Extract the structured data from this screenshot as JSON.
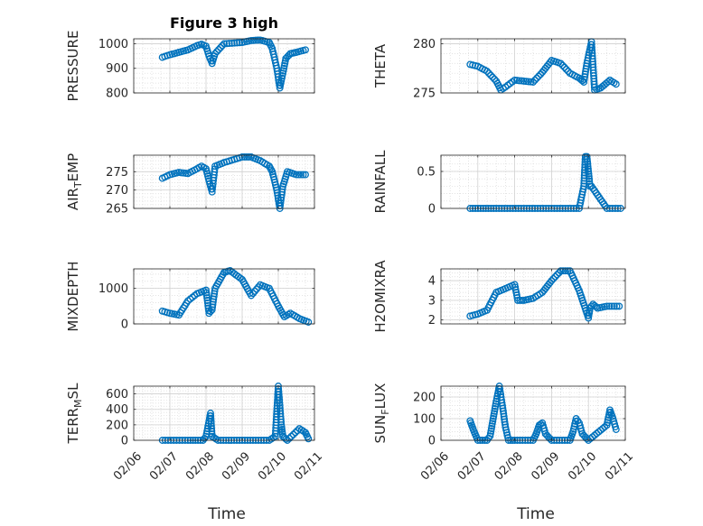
{
  "chart_data": [
    {
      "type": "scatter",
      "title": "Figure 3 high",
      "ylabel": "PRESSURE",
      "ylim": [
        800,
        1020
      ],
      "yticks": [
        800,
        900,
        1000
      ],
      "ytick_labels": [
        "800",
        "900",
        "1000"
      ],
      "xlim": [
        "02/06",
        "02/11"
      ],
      "grid": true,
      "x": [
        "2/6 19:00",
        "2/7 00:00",
        "2/7 06:00",
        "2/7 12:00",
        "2/7 18:00",
        "2/7 21:00",
        "2/8 00:00",
        "2/8 02:00",
        "2/8 04:00",
        "2/8 06:00",
        "2/8 12:00",
        "2/9 00:00",
        "2/9 06:00",
        "2/9 12:00",
        "2/9 18:00",
        "2/9 20:00",
        "2/9 23:00",
        "2/10 01:00",
        "2/10 03:00",
        "2/10 05:00",
        "2/10 08:00",
        "2/10 12:00",
        "2/10 18:00"
      ],
      "y": [
        945,
        955,
        965,
        975,
        992,
        998,
        990,
        950,
        920,
        960,
        1000,
        1005,
        1013,
        1015,
        1005,
        980,
        900,
        820,
        880,
        940,
        960,
        965,
        975
      ]
    },
    {
      "type": "scatter",
      "ylabel": "THETA",
      "ylim": [
        275,
        280.5
      ],
      "yticks": [
        275,
        280
      ],
      "ytick_labels": [
        "275",
        "280"
      ],
      "xlim": [
        "02/06",
        "02/11"
      ],
      "grid": true,
      "x": [
        "2/6 19:00",
        "2/7 00:00",
        "2/7 06:00",
        "2/7 12:00",
        "2/7 15:00",
        "2/7 18:00",
        "2/8 00:00",
        "2/8 06:00",
        "2/8 12:00",
        "2/8 18:00",
        "2/9 00:00",
        "2/9 06:00",
        "2/9 12:00",
        "2/9 18:00",
        "2/9 21:00",
        "2/9 23:00",
        "2/10 02:00",
        "2/10 04:00",
        "2/10 08:00",
        "2/10 14:00",
        "2/10 18:00"
      ],
      "y": [
        277.9,
        277.7,
        277.2,
        276.2,
        275.3,
        275.6,
        276.3,
        276.2,
        276.1,
        277.1,
        278.3,
        278.0,
        277.0,
        276.5,
        276.1,
        278.0,
        280.2,
        275.3,
        275.5,
        276.3,
        275.9
      ]
    },
    {
      "type": "scatter",
      "ylabel": "AIR_TEMP",
      "ylim": [
        265,
        279.5
      ],
      "yticks": [
        265,
        270,
        275
      ],
      "ytick_labels": [
        "265",
        "270",
        "275"
      ],
      "xlim": [
        "02/06",
        "02/11"
      ],
      "grid": true,
      "x": [
        "2/6 19:00",
        "2/7 00:00",
        "2/7 06:00",
        "2/7 12:00",
        "2/7 18:00",
        "2/7 21:00",
        "2/8 00:00",
        "2/8 02:00",
        "2/8 04:00",
        "2/8 06:00",
        "2/8 12:00",
        "2/9 00:00",
        "2/9 06:00",
        "2/9 12:00",
        "2/9 18:00",
        "2/9 20:00",
        "2/9 23:00",
        "2/10 01:00",
        "2/10 03:00",
        "2/10 06:00",
        "2/10 12:00",
        "2/10 18:00"
      ],
      "y": [
        273.2,
        274.2,
        274.8,
        274.5,
        275.8,
        276.5,
        275.8,
        272.5,
        269.5,
        276.5,
        277.5,
        279.0,
        279.0,
        278.0,
        276.5,
        275.0,
        270.0,
        265.0,
        271.0,
        275.0,
        274.2,
        274.2
      ]
    },
    {
      "type": "scatter",
      "ylabel": "RAINFALL",
      "ylim": [
        0,
        0.72
      ],
      "yticks": [
        0,
        0.5
      ],
      "ytick_labels": [
        "0",
        "0.5"
      ],
      "xlim": [
        "02/06",
        "02/11"
      ],
      "grid": true,
      "x": [
        "2/6 19:00",
        "2/7 12:00",
        "2/8 06:00",
        "2/9 00:00",
        "2/9 18:00",
        "2/9 21:00",
        "2/9 22:00",
        "2/9 23:00",
        "2/10 00:00",
        "2/10 01:00",
        "2/10 02:00",
        "2/10 12:00",
        "2/10 21:00"
      ],
      "y": [
        0,
        0,
        0,
        0,
        0,
        0.3,
        0.7,
        0.7,
        0.5,
        0.3,
        0.3,
        0,
        0
      ]
    },
    {
      "type": "scatter",
      "ylabel": "MIXDEPTH",
      "ylim": [
        0,
        1550
      ],
      "yticks": [
        0,
        1000
      ],
      "ytick_labels": [
        "0",
        "1000"
      ],
      "xlim": [
        "02/06",
        "02/11"
      ],
      "grid": true,
      "x": [
        "2/6 19:00",
        "2/7 00:00",
        "2/7 06:00",
        "2/7 12:00",
        "2/7 18:00",
        "2/8 00:00",
        "2/8 02:00",
        "2/8 04:00",
        "2/8 06:00",
        "2/8 12:00",
        "2/8 16:00",
        "2/9 00:00",
        "2/9 06:00",
        "2/9 12:00",
        "2/9 18:00",
        "2/10 00:00",
        "2/10 04:00",
        "2/10 08:00",
        "2/10 14:00",
        "2/10 20:00"
      ],
      "y": [
        360,
        300,
        250,
        650,
        850,
        950,
        300,
        400,
        1000,
        1450,
        1500,
        1250,
        800,
        1100,
        1000,
        500,
        200,
        300,
        150,
        50
      ]
    },
    {
      "type": "scatter",
      "ylabel": "H2OMIXRA",
      "ylim": [
        1.8,
        4.6
      ],
      "yticks": [
        2,
        3,
        4
      ],
      "ytick_labels": [
        "2",
        "3",
        "4"
      ],
      "xlim": [
        "02/06",
        "02/11"
      ],
      "grid": true,
      "x": [
        "2/6 19:00",
        "2/7 00:00",
        "2/7 06:00",
        "2/7 12:00",
        "2/7 18:00",
        "2/8 00:00",
        "2/8 02:00",
        "2/8 06:00",
        "2/8 12:00",
        "2/8 18:00",
        "2/9 00:00",
        "2/9 06:00",
        "2/9 12:00",
        "2/9 18:00",
        "2/10 00:00",
        "2/10 01:00",
        "2/10 03:00",
        "2/10 06:00",
        "2/10 12:00",
        "2/10 20:00"
      ],
      "y": [
        2.2,
        2.3,
        2.5,
        3.4,
        3.6,
        3.8,
        3.0,
        3.0,
        3.1,
        3.4,
        4.0,
        4.5,
        4.5,
        3.5,
        2.1,
        2.6,
        2.8,
        2.6,
        2.7,
        2.7
      ]
    },
    {
      "type": "scatter",
      "ylabel": "TERR_MSL",
      "ylim": [
        0,
        700
      ],
      "yticks": [
        0,
        200,
        400,
        600
      ],
      "ytick_labels": [
        "0",
        "200",
        "400",
        "600"
      ],
      "xlim": [
        "02/06",
        "02/11"
      ],
      "grid": true,
      "x": [
        "2/6 19:00",
        "2/7 12:00",
        "2/7 22:00",
        "2/8 00:00",
        "2/8 01:00",
        "2/8 02:00",
        "2/8 03:00",
        "2/8 04:00",
        "2/8 08:00",
        "2/9 00:00",
        "2/9 18:00",
        "2/9 22:00",
        "2/10 00:00",
        "2/10 01:00",
        "2/10 02:00",
        "2/10 03:00",
        "2/10 06:00",
        "2/10 14:00",
        "2/10 18:00",
        "2/10 20:00"
      ],
      "y": [
        0,
        0,
        0,
        50,
        150,
        250,
        350,
        50,
        0,
        0,
        0,
        50,
        700,
        450,
        200,
        50,
        0,
        150,
        100,
        20
      ]
    },
    {
      "type": "scatter",
      "ylabel": "SUN_FLUX",
      "ylim": [
        0,
        250
      ],
      "yticks": [
        0,
        100,
        200
      ],
      "ytick_labels": [
        "0",
        "100",
        "200"
      ],
      "xlim": [
        "02/06",
        "02/11"
      ],
      "grid": true,
      "x": [
        "2/6 19:00",
        "2/6 21:00",
        "2/7 00:00",
        "2/7 06:00",
        "2/7 08:00",
        "2/7 10:00",
        "2/7 12:00",
        "2/7 14:00",
        "2/7 16:00",
        "2/7 18:00",
        "2/7 20:00",
        "2/8 00:00",
        "2/8 12:00",
        "2/8 14:00",
        "2/8 16:00",
        "2/8 18:00",
        "2/8 20:00",
        "2/9 00:00",
        "2/9 12:00",
        "2/9 14:00",
        "2/9 16:00",
        "2/9 18:00",
        "2/9 20:00",
        "2/10 00:00",
        "2/10 12:00",
        "2/10 14:00",
        "2/10 16:00",
        "2/10 18:00"
      ],
      "y": [
        90,
        50,
        0,
        0,
        20,
        100,
        180,
        250,
        160,
        60,
        0,
        0,
        0,
        30,
        70,
        80,
        30,
        0,
        0,
        40,
        100,
        80,
        30,
        0,
        70,
        140,
        100,
        50
      ]
    }
  ],
  "axes": {
    "xtick_labels": [
      "02/06",
      "02/07",
      "02/08",
      "02/09",
      "02/10",
      "02/11"
    ],
    "xlabel": "Time",
    "marker_color": "#0072BD"
  }
}
